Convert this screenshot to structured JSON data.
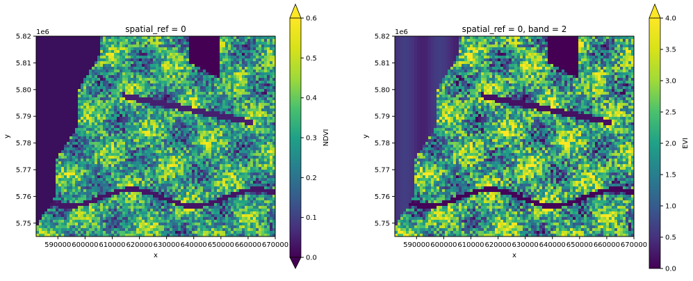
{
  "chart_data": [
    {
      "type": "heatmap",
      "title": "spatial_ref = 0",
      "xlabel": "x",
      "ylabel": "y",
      "offset_label": "1e6",
      "xlim": [
        582000,
        670000
      ],
      "ylim": [
        5.745,
        5.82
      ],
      "x_ticks": [
        "590000",
        "600000",
        "610000",
        "620000",
        "630000",
        "640000",
        "650000",
        "660000",
        "670000"
      ],
      "y_ticks": [
        "5.75",
        "5.76",
        "5.77",
        "5.78",
        "5.79",
        "5.80",
        "5.81",
        "5.82"
      ],
      "colormap": "viridis",
      "colorbar": {
        "label": "NDVI",
        "range": [
          0.0,
          0.6
        ],
        "extend": "both",
        "ticks": [
          "0.0",
          "0.1",
          "0.2",
          "0.3",
          "0.4",
          "0.5",
          "0.6"
        ]
      }
    },
    {
      "type": "heatmap",
      "title": "spatial_ref = 0, band = 2",
      "xlabel": "x",
      "ylabel": "y",
      "offset_label": "1e6",
      "xlim": [
        582000,
        670000
      ],
      "ylim": [
        5.745,
        5.82
      ],
      "x_ticks": [
        "590000",
        "600000",
        "610000",
        "620000",
        "630000",
        "640000",
        "650000",
        "660000",
        "670000"
      ],
      "y_ticks": [
        "5.75",
        "5.76",
        "5.77",
        "5.78",
        "5.79",
        "5.80",
        "5.81",
        "5.82"
      ],
      "colormap": "viridis",
      "colorbar": {
        "label": "EVI",
        "range": [
          0.0,
          4.0
        ],
        "extend": "max",
        "ticks": [
          "0.0",
          "0.5",
          "1.0",
          "1.5",
          "2.0",
          "2.5",
          "3.0",
          "3.5",
          "4.0"
        ]
      }
    }
  ],
  "colors": {
    "viridis_low": "#440154",
    "viridis_mid": "#21918c",
    "viridis_high": "#fde725",
    "sea": "#3a0f5c"
  }
}
